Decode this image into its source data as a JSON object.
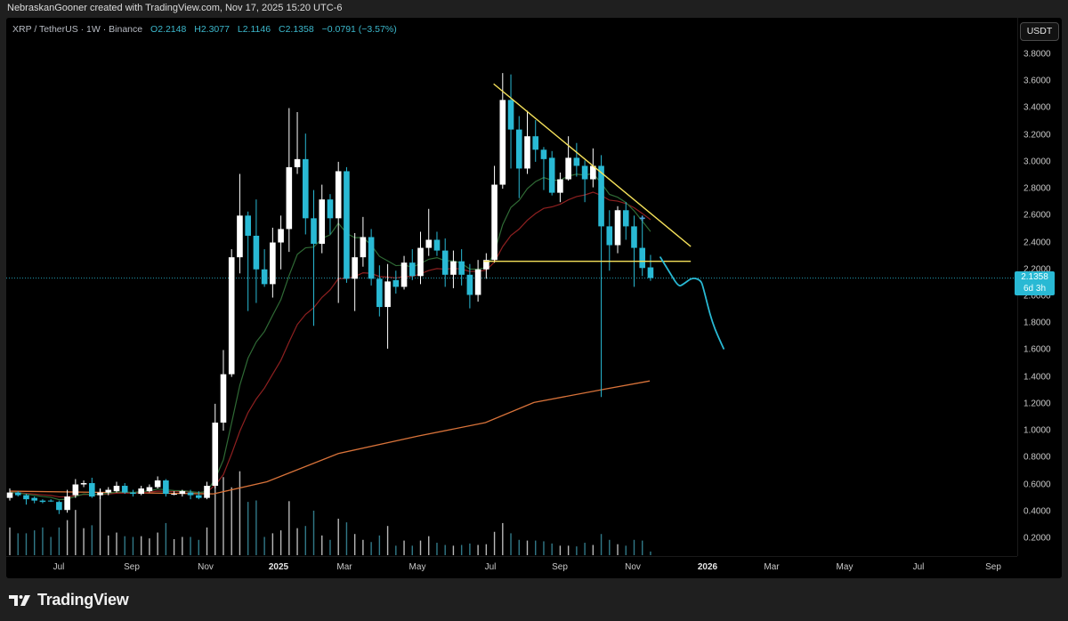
{
  "header": {
    "credit": "NebraskanGooner created with TradingView.com, Nov 17, 2025 15:20 UTC-6"
  },
  "legend": {
    "symbol": "XRP / TetherUS · 1W · Binance",
    "open_label": "O",
    "open": "2.2148",
    "high_label": "H",
    "high": "2.3077",
    "low_label": "L",
    "low": "2.1146",
    "close_label": "C",
    "close": "2.1358",
    "change": "−0.0791 (−3.57%)"
  },
  "currency_button": "USDT",
  "price_label": {
    "price": "2.1358",
    "countdown": "6d 3h"
  },
  "footer": {
    "brand": "TradingView"
  },
  "colors": {
    "up": "#ffffff",
    "down": "#29b9d4",
    "volume_down": "#3a8ea0",
    "volume_up": "#d8d8d8",
    "ma_fast": "#2f6a35",
    "ma_mid": "#8e2020",
    "ma_slow": "#d9733a",
    "trendlines": "#f5e15a",
    "forecast": "#29b9d4"
  },
  "chart_data": {
    "type": "candlestick",
    "title": "",
    "y_axis": {
      "ticks": [
        "3.8000",
        "3.6000",
        "3.4000",
        "3.2000",
        "3.0000",
        "2.8000",
        "2.6000",
        "2.4000",
        "2.2000",
        "2.0000",
        "1.8000",
        "1.6000",
        "1.4000",
        "1.2000",
        "1.0000",
        "0.8000",
        "0.6000",
        "0.4000",
        "0.2000"
      ],
      "range": [
        0.2,
        3.8
      ],
      "scale": "linear"
    },
    "x_axis": {
      "ticks": [
        {
          "label": "Jul",
          "bold": false
        },
        {
          "label": "Sep",
          "bold": false
        },
        {
          "label": "Nov",
          "bold": false
        },
        {
          "label": "2025",
          "bold": true
        },
        {
          "label": "Mar",
          "bold": false
        },
        {
          "label": "May",
          "bold": false
        },
        {
          "label": "Jul",
          "bold": false
        },
        {
          "label": "Sep",
          "bold": false
        },
        {
          "label": "Nov",
          "bold": false
        },
        {
          "label": "2026",
          "bold": true
        },
        {
          "label": "Mar",
          "bold": false
        },
        {
          "label": "May",
          "bold": false
        },
        {
          "label": "Jul",
          "bold": false
        },
        {
          "label": "Sep",
          "bold": false
        }
      ]
    },
    "grid": false,
    "candles_ohlc": [
      [
        0.5,
        0.57,
        0.48,
        0.54
      ],
      [
        0.54,
        0.55,
        0.51,
        0.52
      ],
      [
        0.52,
        0.53,
        0.45,
        0.49
      ],
      [
        0.5,
        0.51,
        0.46,
        0.48
      ],
      [
        0.48,
        0.49,
        0.46,
        0.47
      ],
      [
        0.48,
        0.49,
        0.47,
        0.475
      ],
      [
        0.47,
        0.48,
        0.38,
        0.41
      ],
      [
        0.41,
        0.56,
        0.39,
        0.51
      ],
      [
        0.52,
        0.64,
        0.5,
        0.6
      ],
      [
        0.6,
        0.63,
        0.58,
        0.61
      ],
      [
        0.61,
        0.65,
        0.5,
        0.51
      ],
      [
        0.52,
        0.57,
        0.49,
        0.54
      ],
      [
        0.54,
        0.58,
        0.52,
        0.56
      ],
      [
        0.55,
        0.62,
        0.54,
        0.59
      ],
      [
        0.59,
        0.61,
        0.53,
        0.54
      ],
      [
        0.54,
        0.56,
        0.51,
        0.53
      ],
      [
        0.53,
        0.59,
        0.52,
        0.57
      ],
      [
        0.55,
        0.6,
        0.54,
        0.58
      ],
      [
        0.58,
        0.66,
        0.57,
        0.63
      ],
      [
        0.63,
        0.64,
        0.51,
        0.53
      ],
      [
        0.53,
        0.55,
        0.52,
        0.53
      ],
      [
        0.53,
        0.56,
        0.51,
        0.55
      ],
      [
        0.54,
        0.56,
        0.49,
        0.52
      ],
      [
        0.52,
        0.55,
        0.49,
        0.5
      ],
      [
        0.5,
        0.62,
        0.49,
        0.59
      ],
      [
        0.59,
        1.2,
        0.57,
        1.06
      ],
      [
        1.06,
        1.6,
        1.0,
        1.42
      ],
      [
        1.42,
        2.35,
        1.4,
        2.29
      ],
      [
        2.29,
        2.91,
        2.17,
        2.6
      ],
      [
        2.6,
        2.63,
        1.89,
        2.45
      ],
      [
        2.45,
        2.72,
        1.95,
        2.2
      ],
      [
        2.2,
        2.35,
        2.07,
        2.09
      ],
      [
        2.09,
        2.51,
        1.99,
        2.4
      ],
      [
        2.4,
        2.6,
        2.2,
        2.5
      ],
      [
        2.5,
        3.4,
        2.33,
        2.96
      ],
      [
        2.96,
        3.37,
        2.91,
        3.02
      ],
      [
        3.02,
        3.21,
        2.46,
        2.58
      ],
      [
        2.58,
        2.79,
        1.78,
        2.39
      ],
      [
        2.39,
        2.83,
        2.32,
        2.72
      ],
      [
        2.72,
        2.76,
        2.46,
        2.58
      ],
      [
        2.58,
        3.0,
        1.95,
        2.93
      ],
      [
        2.93,
        2.96,
        2.1,
        2.13
      ],
      [
        2.13,
        2.47,
        1.89,
        2.29
      ],
      [
        2.29,
        2.59,
        2.22,
        2.44
      ],
      [
        2.44,
        2.5,
        2.08,
        2.13
      ],
      [
        2.13,
        2.23,
        1.85,
        1.92
      ],
      [
        1.92,
        2.24,
        1.61,
        2.11
      ],
      [
        2.12,
        2.19,
        2.02,
        2.07
      ],
      [
        2.07,
        2.3,
        2.05,
        2.25
      ],
      [
        2.25,
        2.35,
        2.12,
        2.15
      ],
      [
        2.15,
        2.48,
        2.09,
        2.36
      ],
      [
        2.36,
        2.65,
        2.3,
        2.42
      ],
      [
        2.42,
        2.48,
        2.3,
        2.34
      ],
      [
        2.34,
        2.43,
        2.07,
        2.16
      ],
      [
        2.16,
        2.34,
        2.06,
        2.26
      ],
      [
        2.26,
        2.35,
        2.08,
        2.16
      ],
      [
        2.16,
        2.24,
        1.91,
        2.01
      ],
      [
        2.01,
        2.27,
        1.96,
        2.2
      ],
      [
        2.2,
        2.32,
        2.13,
        2.27
      ],
      [
        2.27,
        2.97,
        2.25,
        2.83
      ],
      [
        2.83,
        3.66,
        2.8,
        3.46
      ],
      [
        3.46,
        3.65,
        2.95,
        3.24
      ],
      [
        3.24,
        3.34,
        2.73,
        2.95
      ],
      [
        2.95,
        3.38,
        2.91,
        3.19
      ],
      [
        3.19,
        3.31,
        3.0,
        3.09
      ],
      [
        3.09,
        3.11,
        2.79,
        3.02
      ],
      [
        3.03,
        3.08,
        2.75,
        2.77
      ],
      [
        2.77,
        2.92,
        2.7,
        2.87
      ],
      [
        2.87,
        3.19,
        2.86,
        3.03
      ],
      [
        3.03,
        3.14,
        2.89,
        2.97
      ],
      [
        2.97,
        3.01,
        2.7,
        2.87
      ],
      [
        2.87,
        3.1,
        2.81,
        2.97
      ],
      [
        2.97,
        3.05,
        1.25,
        2.52
      ],
      [
        2.52,
        2.64,
        2.19,
        2.38
      ],
      [
        2.38,
        2.67,
        2.32,
        2.64
      ],
      [
        2.64,
        2.7,
        2.42,
        2.52
      ],
      [
        2.52,
        2.6,
        2.07,
        2.36
      ],
      [
        2.36,
        2.58,
        2.15,
        2.21
      ],
      [
        2.2148,
        2.3077,
        2.1146,
        2.1358
      ]
    ],
    "volume_relative": [
      38,
      30,
      30,
      34,
      38,
      25,
      38,
      48,
      62,
      37,
      41,
      91,
      27,
      31,
      26,
      25,
      26,
      23,
      31,
      44,
      22,
      25,
      25,
      21,
      38,
      115,
      107,
      93,
      115,
      73,
      75,
      25,
      30,
      34,
      74,
      37,
      40,
      61,
      27,
      21,
      50,
      45,
      29,
      21,
      18,
      27,
      40,
      13,
      20,
      13,
      20,
      26,
      17,
      14,
      13,
      14,
      16,
      14,
      15,
      32,
      44,
      30,
      21,
      20,
      20,
      19,
      16,
      13,
      13,
      12,
      17,
      14,
      29,
      21,
      15,
      13,
      21,
      20,
      5
    ],
    "moving_averages": {
      "fast_ema_period_estimate": 10,
      "mid_ema_period_estimate": 20,
      "slow_line_points": [
        [
          0,
          0.55
        ],
        [
          24.8,
          0.53
        ],
        [
          31.3,
          0.62
        ],
        [
          40,
          0.83
        ],
        [
          49.7,
          0.96
        ],
        [
          57.9,
          1.06
        ],
        [
          63.8,
          1.21
        ],
        [
          72.5,
          1.31
        ],
        [
          77.9,
          1.37
        ]
      ]
    },
    "drawings": {
      "descending_trendline": [
        [
          58.9,
          3.58
        ],
        [
          82.9,
          2.37
        ]
      ],
      "support_line": [
        [
          57.7,
          2.26
        ],
        [
          82.9,
          2.26
        ]
      ],
      "forecast_path": [
        [
          79.2,
          2.29
        ],
        [
          80.3,
          2.18
        ],
        [
          81.4,
          2.07
        ],
        [
          82.0,
          2.09
        ],
        [
          83.1,
          2.14
        ],
        [
          84.1,
          2.12
        ],
        [
          84.4,
          2.07
        ],
        [
          85.5,
          1.8
        ],
        [
          86.9,
          1.61
        ]
      ],
      "marker_cross": [
        77,
        2.58
      ]
    },
    "last_price": 2.1358
  }
}
